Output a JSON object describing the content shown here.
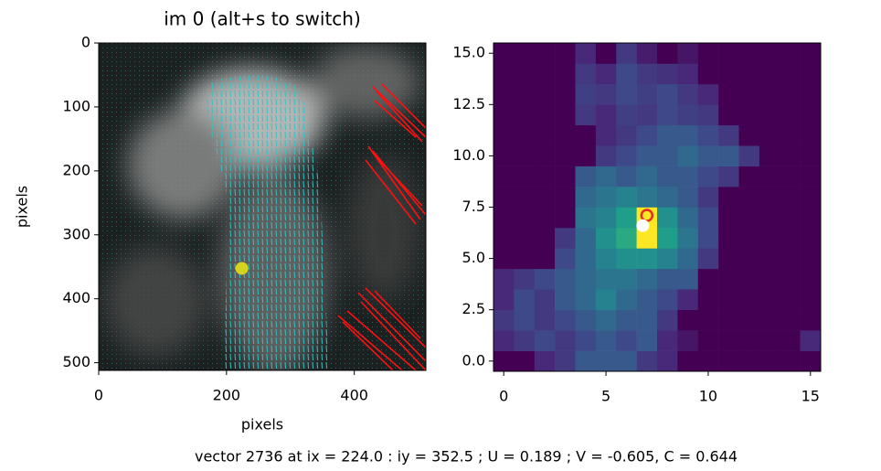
{
  "chart_data": [
    {
      "type": "image",
      "title": "im 0 (alt+s to switch)",
      "xlabel": "pixels",
      "ylabel": "pixels",
      "xlim": [
        0,
        512
      ],
      "ylim": [
        512,
        0
      ],
      "xticks": [
        0,
        200,
        400
      ],
      "yticks": [
        0,
        100,
        200,
        300,
        400,
        500
      ],
      "marker": {
        "x": 224,
        "y": 352.5,
        "color": "#d4d420"
      }
    },
    {
      "type": "heatmap",
      "xlim": [
        -0.5,
        15.5
      ],
      "ylim": [
        -0.5,
        15.5
      ],
      "xticks": [
        0,
        5,
        10,
        15
      ],
      "yticks": [
        {
          "value": 0,
          "label": "0.0"
        },
        {
          "value": 2.5,
          "label": "2.5"
        },
        {
          "value": 5,
          "label": "5.0"
        },
        {
          "value": 7.5,
          "label": "7.5"
        },
        {
          "value": 10,
          "label": "10.0"
        },
        {
          "value": 12.5,
          "label": "12.5"
        },
        {
          "value": 15,
          "label": "15.0"
        }
      ],
      "values": [
        [
          0.05,
          0.05,
          0.15,
          0.2,
          0.3,
          0.3,
          0.3,
          0.2,
          0.15,
          0.05,
          0.05,
          0.05,
          0.05,
          0.05,
          0.05,
          0.05
        ],
        [
          0.15,
          0.2,
          0.25,
          0.2,
          0.25,
          0.3,
          0.25,
          0.3,
          0.15,
          0.1,
          0.05,
          0.05,
          0.05,
          0.05,
          0.05,
          0.15
        ],
        [
          0.2,
          0.25,
          0.2,
          0.25,
          0.3,
          0.35,
          0.3,
          0.3,
          0.2,
          0.05,
          0.05,
          0.05,
          0.05,
          0.05,
          0.05,
          0.05
        ],
        [
          0.15,
          0.25,
          0.2,
          0.3,
          0.35,
          0.45,
          0.35,
          0.3,
          0.25,
          0.15,
          0.05,
          0.05,
          0.05,
          0.05,
          0.05,
          0.05
        ],
        [
          0.15,
          0.2,
          0.25,
          0.3,
          0.35,
          0.4,
          0.4,
          0.35,
          0.3,
          0.3,
          0.05,
          0.05,
          0.05,
          0.05,
          0.05,
          0.05
        ],
        [
          0.05,
          0.05,
          0.05,
          0.25,
          0.35,
          0.45,
          0.5,
          0.5,
          0.45,
          0.35,
          0.2,
          0.05,
          0.05,
          0.05,
          0.05,
          0.05
        ],
        [
          0.05,
          0.05,
          0.05,
          0.2,
          0.35,
          0.5,
          0.6,
          0.95,
          0.55,
          0.4,
          0.25,
          0.05,
          0.05,
          0.05,
          0.05,
          0.05
        ],
        [
          0.05,
          0.05,
          0.05,
          0.05,
          0.4,
          0.45,
          0.55,
          0.95,
          0.5,
          0.35,
          0.25,
          0.05,
          0.05,
          0.05,
          0.05,
          0.05
        ],
        [
          0.05,
          0.05,
          0.05,
          0.05,
          0.35,
          0.4,
          0.45,
          0.4,
          0.35,
          0.3,
          0.2,
          0.05,
          0.05,
          0.05,
          0.05,
          0.05
        ],
        [
          0.05,
          0.05,
          0.05,
          0.05,
          0.3,
          0.35,
          0.3,
          0.35,
          0.3,
          0.3,
          0.25,
          0.2,
          0.05,
          0.05,
          0.05,
          0.05
        ],
        [
          0.05,
          0.05,
          0.05,
          0.05,
          0.05,
          0.2,
          0.25,
          0.3,
          0.3,
          0.35,
          0.3,
          0.3,
          0.2,
          0.05,
          0.05,
          0.05
        ],
        [
          0.05,
          0.05,
          0.05,
          0.05,
          0.05,
          0.15,
          0.2,
          0.25,
          0.3,
          0.3,
          0.25,
          0.2,
          0.05,
          0.05,
          0.05,
          0.05
        ],
        [
          0.05,
          0.05,
          0.05,
          0.05,
          0.2,
          0.15,
          0.22,
          0.2,
          0.25,
          0.22,
          0.2,
          0.05,
          0.05,
          0.05,
          0.05,
          0.05
        ],
        [
          0.05,
          0.05,
          0.05,
          0.05,
          0.22,
          0.2,
          0.25,
          0.22,
          0.25,
          0.2,
          0.15,
          0.05,
          0.05,
          0.05,
          0.05,
          0.05
        ],
        [
          0.05,
          0.05,
          0.05,
          0.05,
          0.2,
          0.15,
          0.25,
          0.2,
          0.18,
          0.15,
          0.05,
          0.05,
          0.05,
          0.05,
          0.05,
          0.05
        ],
        [
          0.05,
          0.05,
          0.05,
          0.05,
          0.15,
          0.05,
          0.2,
          0.12,
          0.05,
          0.1,
          0.05,
          0.05,
          0.05,
          0.05,
          0.05,
          0.05
        ]
      ],
      "markers": [
        {
          "x": 7,
          "y": 7.1,
          "color": "#e0301e",
          "shape": "ring"
        },
        {
          "x": 6.8,
          "y": 6.6,
          "color": "#ffffff",
          "shape": "dot"
        }
      ]
    }
  ],
  "status": "vector 2736 at ix = 224.0 : iy = 352.5 ; U = 0.189 ; V = -0.605, C = 0.644"
}
